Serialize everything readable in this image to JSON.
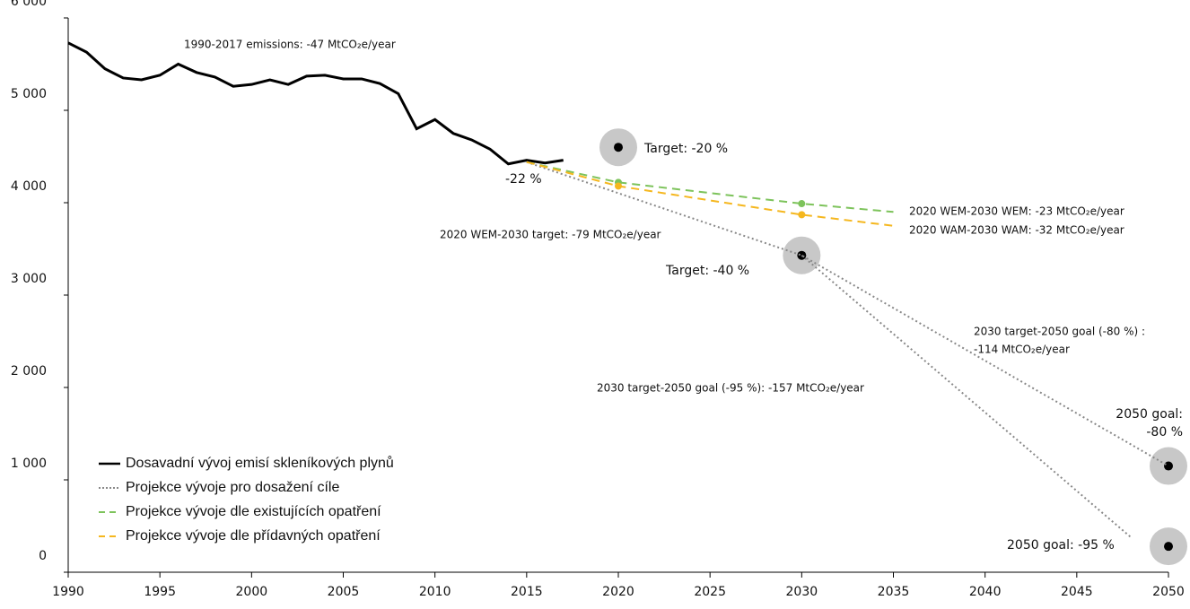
{
  "chart_data": {
    "type": "line",
    "xlim": [
      1990,
      2050
    ],
    "xticks": [
      1990,
      1995,
      2000,
      2005,
      2010,
      2015,
      2020,
      2025,
      2030,
      2035,
      2040,
      2045,
      2050
    ],
    "ylim": [
      0,
      6000
    ],
    "yticks": [
      0,
      {
        "value": 1000,
        "label": "1 000"
      },
      {
        "value": 2000,
        "label": "2 000"
      },
      {
        "value": 3000,
        "label": "3 000"
      },
      {
        "value": 4000,
        "label": "4 000"
      },
      {
        "value": 5000,
        "label": "5 000"
      },
      {
        "value": 6000,
        "label": "6 000"
      }
    ],
    "grid": false,
    "legend": "lower left",
    "series": [
      {
        "name": "Dosavadní vývoj emisí skleníkových plynů",
        "color": "#000000",
        "style": "solid",
        "x": [
          1990,
          1991,
          1992,
          1993,
          1994,
          1995,
          1996,
          1997,
          1998,
          1999,
          2000,
          2001,
          2002,
          2003,
          2004,
          2005,
          2006,
          2007,
          2008,
          2009,
          2010,
          2011,
          2012,
          2013,
          2014,
          2015,
          2016,
          2017
        ],
        "values": [
          5730,
          5630,
          5450,
          5350,
          5330,
          5380,
          5500,
          5410,
          5360,
          5260,
          5280,
          5330,
          5280,
          5370,
          5380,
          5340,
          5340,
          5290,
          5180,
          4800,
          4900,
          4750,
          4680,
          4580,
          4420,
          4460,
          4430,
          4460
        ]
      },
      {
        "name": "Projekce vývoje pro dosažení cíle",
        "color": "#888888",
        "style": "dotted",
        "x": [
          2015,
          2030,
          2050
        ],
        "values": [
          4440,
          3430,
          1150
        ]
      },
      {
        "name": "Projekce vývoje dle existujících opatření",
        "color": "#7dc35b",
        "style": "dashed",
        "markers": true,
        "x": [
          2015,
          2020,
          2030,
          2035
        ],
        "values": [
          4440,
          4220,
          3990,
          3900
        ]
      },
      {
        "name": "Projekce vývoje dle přídavných opatření",
        "color": "#f5b71f",
        "style": "dashed",
        "markers": true,
        "x": [
          2015,
          2020,
          2030,
          2035
        ],
        "values": [
          4440,
          4180,
          3870,
          3750
        ]
      },
      {
        "color": "#888888",
        "style": "dotted",
        "x": [
          2030,
          2048
        ],
        "values": [
          3430,
          370
        ]
      }
    ],
    "targets": {
      "x": [
        2020,
        2030,
        2050,
        2050
      ],
      "values": [
        4600,
        3430,
        1150,
        280
      ]
    },
    "annotations": [
      "1990-2017 emissions: -47 MtCO₂e/year",
      "Target: -20 %",
      "-22 %",
      "2020 WEM-2030 target: -79 MtCO₂e/year",
      "Target: -40 %",
      "2020 WEM-2030 WEM: -23 MtCO₂e/year",
      "2020 WAM-2030 WAM: -32 MtCO₂e/year",
      "2030 target-2050 goal (-80 %) :",
      "-114 MtCO₂e/year",
      "2030 target-2050 goal (-95 %): -157 MtCO₂e/year",
      "2050 goal:",
      "-80 %",
      "2050 goal: -95 %"
    ]
  }
}
